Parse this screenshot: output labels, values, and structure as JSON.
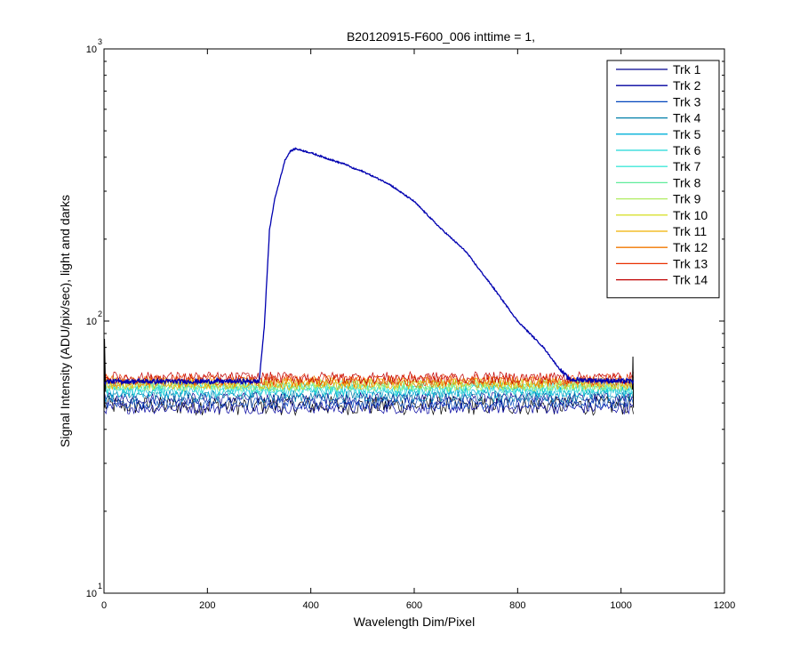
{
  "chart_data": {
    "type": "line",
    "title": "B20120915-F600_006 inttime = 1,",
    "xlabel": "Wavelength Dim/Pixel",
    "ylabel": "Signal Intensity (ADU/pix/sec), light and darks",
    "xlim": [
      0,
      1200
    ],
    "ylim": [
      10,
      1000
    ],
    "yscale": "log",
    "xticks": [
      "0",
      "200",
      "400",
      "600",
      "800",
      "1000",
      "1200"
    ],
    "yticks": [
      {
        "value": 10,
        "base": "10",
        "exp": "1"
      },
      {
        "value": 100,
        "base": "10",
        "exp": "2"
      },
      {
        "value": 1000,
        "base": "10",
        "exp": "3"
      }
    ],
    "grid": false,
    "legend_position": "top-right",
    "x_range": [
      1,
      1024
    ],
    "light_track": {
      "name": "Trk 1",
      "color": "#0000b0",
      "baseline": 60,
      "x": [
        1,
        300,
        310,
        320,
        330,
        340,
        350,
        360,
        370,
        400,
        450,
        470,
        480,
        500,
        550,
        600,
        650,
        700,
        720,
        750,
        800,
        850,
        880,
        900,
        1024
      ],
      "y": [
        60,
        60,
        95,
        215,
        280,
        330,
        390,
        420,
        430,
        415,
        385,
        375,
        365,
        355,
        320,
        275,
        220,
        180,
        160,
        135,
        100,
        80,
        67,
        61,
        60
      ]
    },
    "series": [
      {
        "name": "Trk 1",
        "color": "#00008f",
        "dark_level": 52
      },
      {
        "name": "Trk 2",
        "color": "#00009f",
        "dark_level": 48
      },
      {
        "name": "Trk 3",
        "color": "#0044bb",
        "dark_level": 50
      },
      {
        "name": "Trk 4",
        "color": "#007fa8",
        "dark_level": 53
      },
      {
        "name": "Trk 5",
        "color": "#00b0d8",
        "dark_level": 55
      },
      {
        "name": "Trk 6",
        "color": "#1fd6d6",
        "dark_level": 56
      },
      {
        "name": "Trk 7",
        "color": "#40e8d8",
        "dark_level": 57
      },
      {
        "name": "Trk 8",
        "color": "#60ec9a",
        "dark_level": 58
      },
      {
        "name": "Trk 9",
        "color": "#b0ec60",
        "dark_level": 58
      },
      {
        "name": "Trk 10",
        "color": "#d8e030",
        "dark_level": 59
      },
      {
        "name": "Trk 11",
        "color": "#f0b000",
        "dark_level": 59
      },
      {
        "name": "Trk 12",
        "color": "#f07800",
        "dark_level": 60
      },
      {
        "name": "Trk 13",
        "color": "#e83000",
        "dark_level": 61
      },
      {
        "name": "Trk 14",
        "color": "#c00000",
        "dark_level": 62
      }
    ],
    "black_dark_level": 49
  }
}
